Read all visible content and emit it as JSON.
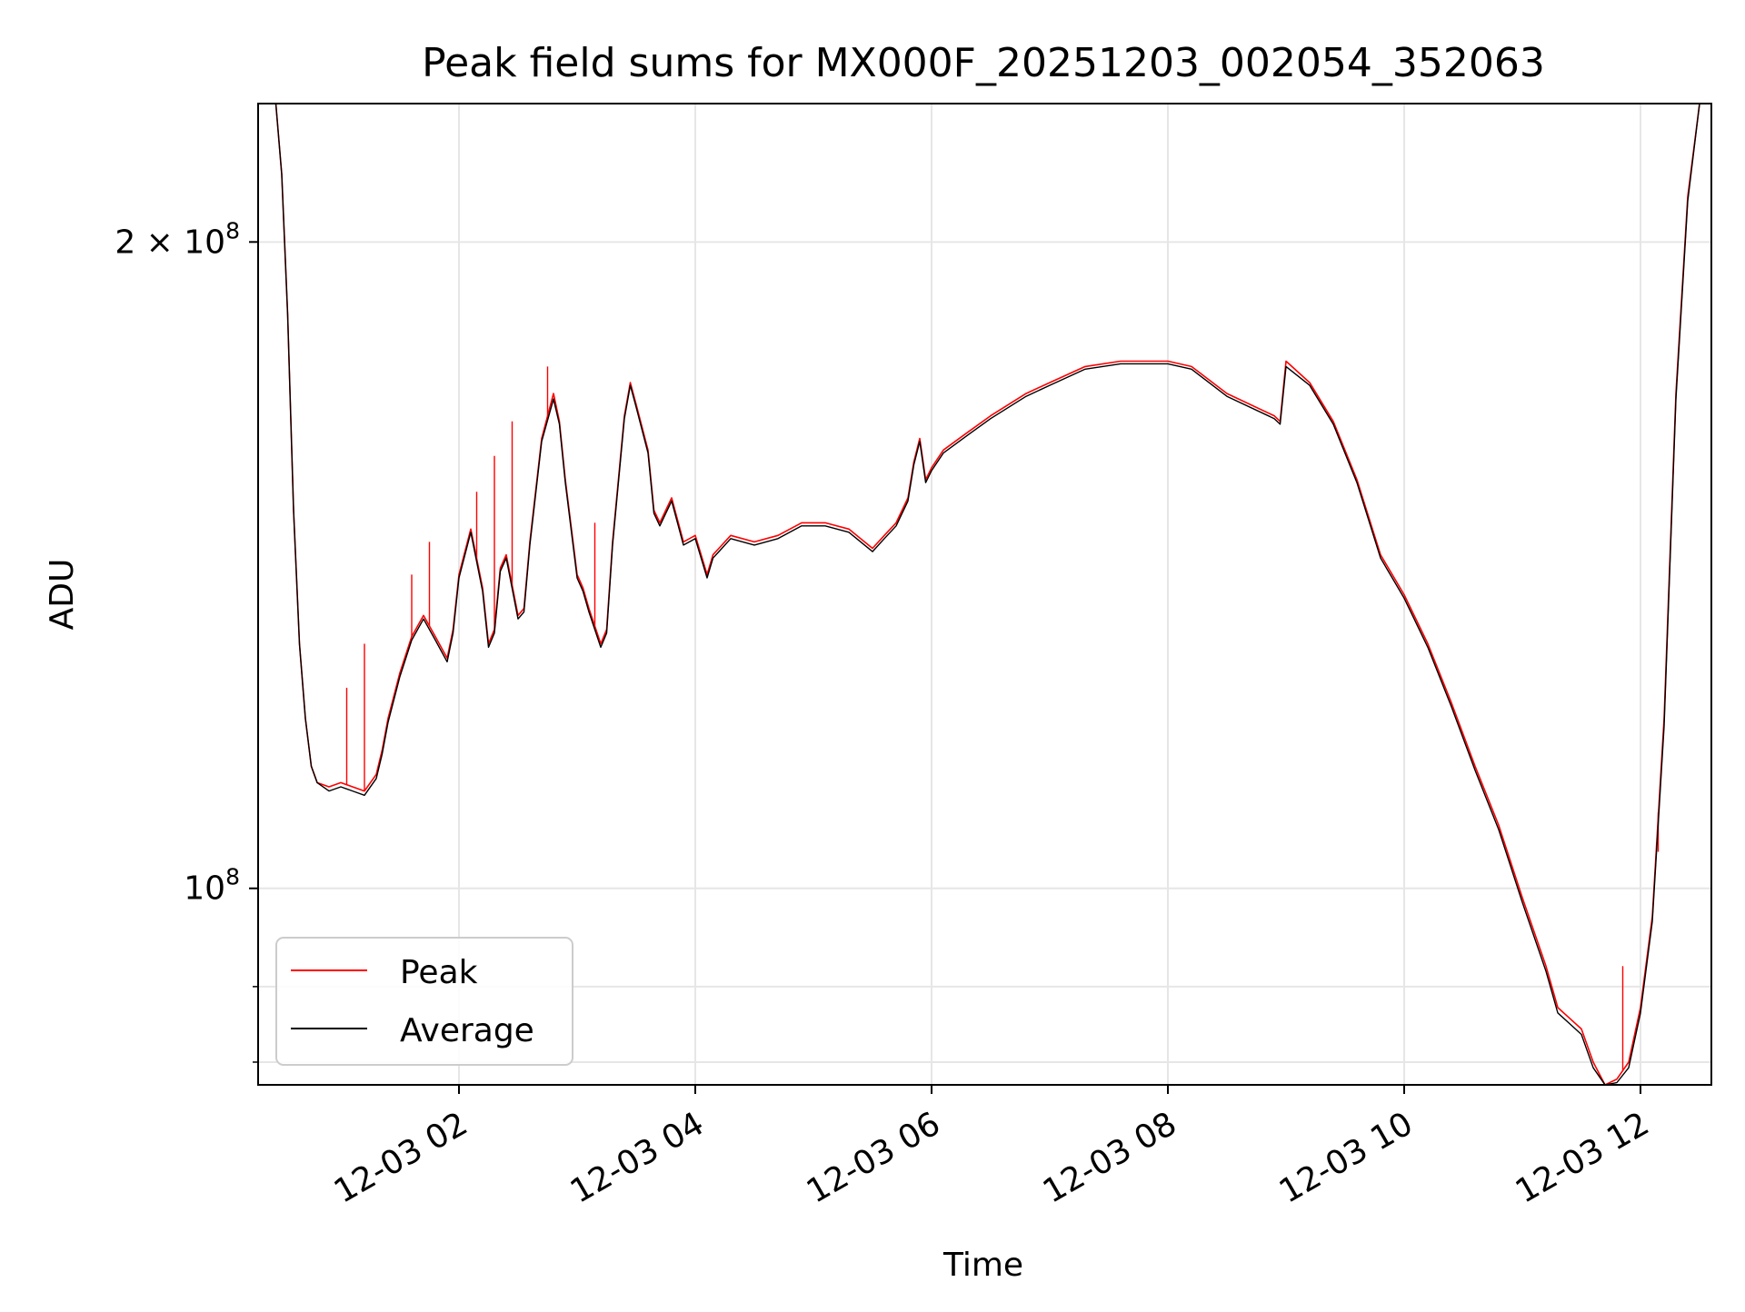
{
  "chart_data": {
    "type": "line",
    "title": "Peak field sums for MX000F_20251203_002054_352063",
    "xlabel": "Time",
    "ylabel": "ADU",
    "yscale": "log",
    "xlim": [
      0.3,
      12.6
    ],
    "ylim": [
      81000000,
      232000000
    ],
    "grid": true,
    "legend_position": "lower-left",
    "x_ticks": [
      {
        "value": 2,
        "label": "12-03 02"
      },
      {
        "value": 4,
        "label": "12-03 04"
      },
      {
        "value": 6,
        "label": "12-03 06"
      },
      {
        "value": 8,
        "label": "12-03 08"
      },
      {
        "value": 10,
        "label": "12-03 10"
      },
      {
        "value": 12,
        "label": "12-03 12"
      }
    ],
    "y_ticks": [
      {
        "value": 100000000,
        "base": "10",
        "exp": "8",
        "mult": ""
      },
      {
        "value": 200000000,
        "base": "10",
        "exp": "8",
        "mult": "2 × "
      }
    ],
    "y_minor_ticks": [
      83000000,
      90000000
    ],
    "series": [
      {
        "name": "Peak",
        "color": "#ff0000",
        "x": [
          0.3,
          0.45,
          0.5,
          0.55,
          0.6,
          0.65,
          0.7,
          0.75,
          0.8,
          0.9,
          1.0,
          1.1,
          1.2,
          1.3,
          1.35,
          1.4,
          1.5,
          1.6,
          1.7,
          1.8,
          1.9,
          1.95,
          2.0,
          2.1,
          2.2,
          2.25,
          2.3,
          2.35,
          2.4,
          2.5,
          2.55,
          2.6,
          2.7,
          2.8,
          2.85,
          2.9,
          3.0,
          3.05,
          3.1,
          3.2,
          3.25,
          3.3,
          3.4,
          3.45,
          3.5,
          3.6,
          3.65,
          3.7,
          3.8,
          3.9,
          4.0,
          4.1,
          4.15,
          4.2,
          4.3,
          4.5,
          4.7,
          4.9,
          5.1,
          5.3,
          5.5,
          5.6,
          5.7,
          5.8,
          5.85,
          5.9,
          5.95,
          6.0,
          6.1,
          6.3,
          6.5,
          6.8,
          7.0,
          7.3,
          7.6,
          8.0,
          8.2,
          8.5,
          8.9,
          8.95,
          9.0,
          9.2,
          9.4,
          9.6,
          9.8,
          10.0,
          10.2,
          10.4,
          10.6,
          10.8,
          11.0,
          11.2,
          11.3,
          11.4,
          11.5,
          11.6,
          11.7,
          11.8,
          11.9,
          12.0,
          12.1,
          12.2,
          12.3,
          12.4,
          12.5,
          12.6
        ],
        "y": [
          232000000,
          232000000,
          215000000,
          185000000,
          150000000,
          130000000,
          120000000,
          114000000,
          112000000,
          111500000,
          112000000,
          111500000,
          111000000,
          113000000,
          116000000,
          120000000,
          126000000,
          131000000,
          134000000,
          131000000,
          128000000,
          132000000,
          140000000,
          147000000,
          138000000,
          130000000,
          132000000,
          141000000,
          143000000,
          134000000,
          135000000,
          145000000,
          162000000,
          170000000,
          165000000,
          155000000,
          140000000,
          138000000,
          135000000,
          130000000,
          132000000,
          145000000,
          166000000,
          172000000,
          168000000,
          160000000,
          150000000,
          148000000,
          152000000,
          145000000,
          146000000,
          140000000,
          143000000,
          144000000,
          146000000,
          145000000,
          146000000,
          148000000,
          148000000,
          147000000,
          144000000,
          146000000,
          148000000,
          152000000,
          158000000,
          162000000,
          155000000,
          157000000,
          160000000,
          163000000,
          166000000,
          170000000,
          172000000,
          175000000,
          176000000,
          176000000,
          175000000,
          170000000,
          166000000,
          165000000,
          176000000,
          172000000,
          165000000,
          155000000,
          143000000,
          137000000,
          130000000,
          122000000,
          114000000,
          107000000,
          99000000,
          92000000,
          88000000,
          87000000,
          86000000,
          83000000,
          81000000,
          81500000,
          83000000,
          88000000,
          97000000,
          120000000,
          170000000,
          210000000,
          232000000,
          232000000
        ],
        "spikes": [
          {
            "x": 1.05,
            "y": 124000000
          },
          {
            "x": 1.2,
            "y": 130000000
          },
          {
            "x": 1.6,
            "y": 140000000
          },
          {
            "x": 1.75,
            "y": 145000000
          },
          {
            "x": 2.15,
            "y": 153000000
          },
          {
            "x": 2.3,
            "y": 159000000
          },
          {
            "x": 2.45,
            "y": 165000000
          },
          {
            "x": 2.75,
            "y": 175000000
          },
          {
            "x": 3.15,
            "y": 148000000
          },
          {
            "x": 11.85,
            "y": 92000000
          },
          {
            "x": 12.15,
            "y": 104000000
          }
        ]
      },
      {
        "name": "Average",
        "color": "#000000",
        "x": [
          0.3,
          0.45,
          0.5,
          0.55,
          0.6,
          0.65,
          0.7,
          0.75,
          0.8,
          0.9,
          1.0,
          1.1,
          1.2,
          1.3,
          1.35,
          1.4,
          1.5,
          1.6,
          1.7,
          1.8,
          1.9,
          1.95,
          2.0,
          2.1,
          2.2,
          2.25,
          2.3,
          2.35,
          2.4,
          2.5,
          2.55,
          2.6,
          2.7,
          2.8,
          2.85,
          2.9,
          3.0,
          3.05,
          3.1,
          3.2,
          3.25,
          3.3,
          3.4,
          3.45,
          3.5,
          3.6,
          3.65,
          3.7,
          3.8,
          3.9,
          4.0,
          4.1,
          4.15,
          4.2,
          4.3,
          4.5,
          4.7,
          4.9,
          5.1,
          5.3,
          5.5,
          5.6,
          5.7,
          5.8,
          5.85,
          5.9,
          5.95,
          6.0,
          6.1,
          6.3,
          6.5,
          6.8,
          7.0,
          7.3,
          7.6,
          8.0,
          8.2,
          8.5,
          8.9,
          8.95,
          9.0,
          9.2,
          9.4,
          9.6,
          9.8,
          10.0,
          10.2,
          10.4,
          10.6,
          10.8,
          11.0,
          11.2,
          11.3,
          11.4,
          11.5,
          11.6,
          11.7,
          11.8,
          11.9,
          12.0,
          12.1,
          12.2,
          12.3,
          12.4,
          12.5,
          12.6
        ],
        "y": [
          232000000,
          232000000,
          215000000,
          185000000,
          150000000,
          130000000,
          120000000,
          114000000,
          112000000,
          111000000,
          111500000,
          111000000,
          110500000,
          112500000,
          115500000,
          119500000,
          125500000,
          130500000,
          133500000,
          130500000,
          127500000,
          131500000,
          139500000,
          146500000,
          137500000,
          129500000,
          131500000,
          140500000,
          142500000,
          133500000,
          134500000,
          144500000,
          161500000,
          169000000,
          164500000,
          154500000,
          139500000,
          137500000,
          134500000,
          129500000,
          131500000,
          144500000,
          165500000,
          171500000,
          167500000,
          159500000,
          149500000,
          147500000,
          151500000,
          144500000,
          145500000,
          139500000,
          142500000,
          143500000,
          145500000,
          144500000,
          145500000,
          147500000,
          147500000,
          146500000,
          143500000,
          145500000,
          147500000,
          151500000,
          157500000,
          161500000,
          154500000,
          156500000,
          159500000,
          162500000,
          165500000,
          169500000,
          171500000,
          174500000,
          175500000,
          175500000,
          174500000,
          169500000,
          165500000,
          164500000,
          175000000,
          171500000,
          164500000,
          154500000,
          142500000,
          136500000,
          129500000,
          121500000,
          113500000,
          106500000,
          98500000,
          91500000,
          87500000,
          86500000,
          85500000,
          82500000,
          81000000,
          81200000,
          82500000,
          87500000,
          96500000,
          119000000,
          169000000,
          209000000,
          232000000,
          232000000
        ]
      }
    ]
  }
}
